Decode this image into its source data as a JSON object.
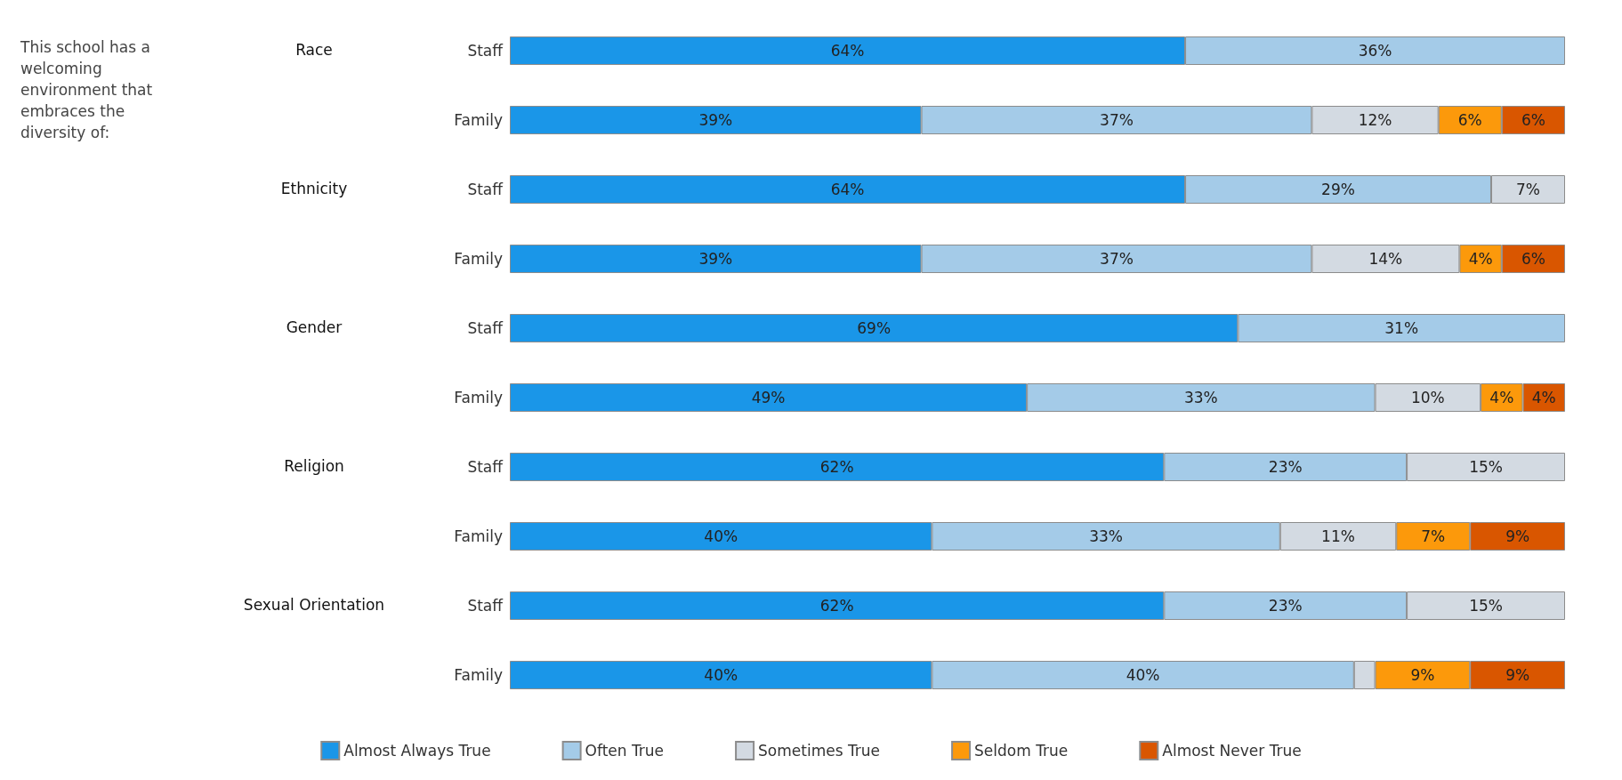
{
  "chart_data": {
    "type": "bar",
    "orientation": "horizontal",
    "stacked": true,
    "title": "This school has a welcoming environment that embraces the diversity of:",
    "categories": [
      "Staff",
      "Family",
      "Staff",
      "Family",
      "Staff",
      "Family",
      "Staff",
      "Family",
      "Staff",
      "Family"
    ],
    "annotations": [
      "Race",
      "Ethnicity",
      "Gender",
      "Religion",
      "Sexual Orientation"
    ],
    "series": [
      {
        "name": "Almost Always True",
        "color": "#1a96e8",
        "values": [
          64,
          39,
          64,
          39,
          69,
          49,
          62,
          40,
          62,
          40
        ],
        "value_labels": [
          "64%",
          "39%",
          "64%",
          "39%",
          "69%",
          "49%",
          "62%",
          "40%",
          "62%",
          "40%"
        ]
      },
      {
        "name": "Often True",
        "color": "#a4cbe8",
        "values": [
          36,
          37,
          29,
          37,
          31,
          33,
          23,
          33,
          23,
          40
        ],
        "value_labels": [
          "36%",
          "37%",
          "29%",
          "37%",
          "31%",
          "33%",
          "23%",
          "33%",
          "23%",
          "40%"
        ]
      },
      {
        "name": "Sometimes True",
        "color": "#d3dae2",
        "values": [
          null,
          12,
          7,
          14,
          null,
          10,
          15,
          11,
          15,
          2
        ],
        "value_labels": [
          null,
          "12%",
          "7%",
          "14%",
          null,
          "10%",
          "15%",
          "11%",
          "15%",
          null
        ]
      },
      {
        "name": "Seldom True",
        "color": "#fc990b",
        "values": [
          null,
          6,
          null,
          4,
          null,
          4,
          null,
          7,
          null,
          9
        ],
        "value_labels": [
          null,
          "6%",
          null,
          "4%",
          null,
          "4%",
          null,
          "7%",
          null,
          "9%"
        ]
      },
      {
        "name": "Almost Never True",
        "color": "#d95600",
        "values": [
          null,
          6,
          null,
          6,
          null,
          4,
          null,
          9,
          null,
          9
        ],
        "value_labels": [
          null,
          "6%",
          null,
          "6%",
          null,
          "4%",
          null,
          "9%",
          null,
          "9%"
        ]
      }
    ],
    "legend": "bottom"
  }
}
